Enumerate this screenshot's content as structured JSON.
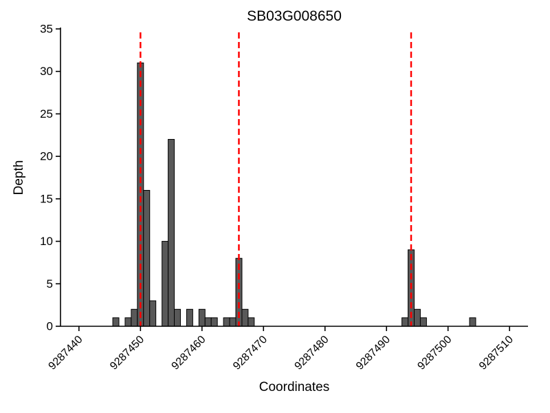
{
  "chart_data": {
    "type": "bar",
    "title": "SB03G008650",
    "xlabel": "Coordinates",
    "ylabel": "Depth",
    "xlim": [
      9287437,
      9287513
    ],
    "ylim": [
      0,
      35
    ],
    "yticks": [
      0,
      5,
      10,
      15,
      20,
      25,
      30,
      35
    ],
    "xticks": [
      9287440,
      9287450,
      9287460,
      9287470,
      9287480,
      9287490,
      9287500,
      9287510
    ],
    "bar_color": "#595959",
    "bar_edge_color": "#000000",
    "marker_line_color": "#ff0000",
    "axis_color": "#000000",
    "marker_lines_x": [
      9287450,
      9287466,
      9287494
    ],
    "bars": [
      [
        9287446,
        1
      ],
      [
        9287448,
        1
      ],
      [
        9287449,
        2
      ],
      [
        9287450,
        31
      ],
      [
        9287451,
        16
      ],
      [
        9287452,
        3
      ],
      [
        9287454,
        10
      ],
      [
        9287455,
        22
      ],
      [
        9287456,
        2
      ],
      [
        9287458,
        2
      ],
      [
        9287460,
        2
      ],
      [
        9287461,
        1
      ],
      [
        9287462,
        1
      ],
      [
        9287464,
        1
      ],
      [
        9287465,
        1
      ],
      [
        9287466,
        8
      ],
      [
        9287467,
        2
      ],
      [
        9287468,
        1
      ],
      [
        9287493,
        1
      ],
      [
        9287494,
        9
      ],
      [
        9287495,
        2
      ],
      [
        9287496,
        1
      ],
      [
        9287504,
        1
      ]
    ],
    "legend": "none",
    "grid": false
  }
}
